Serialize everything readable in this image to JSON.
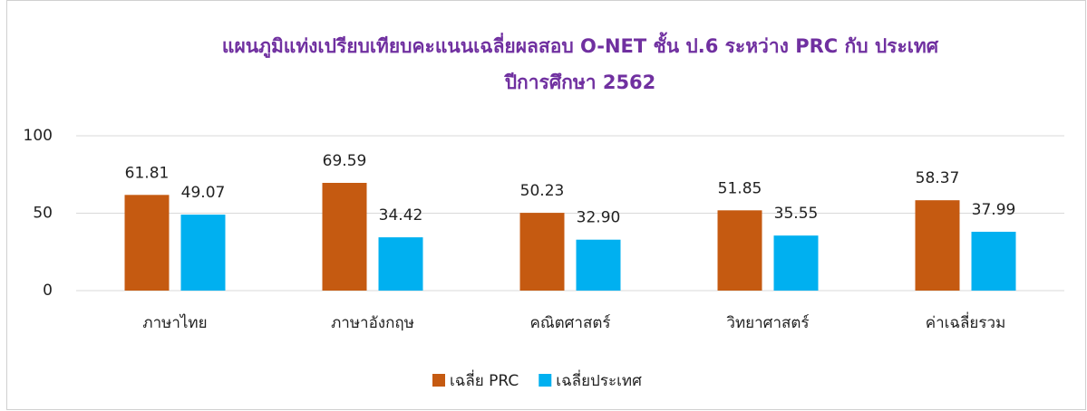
{
  "chart_data": {
    "type": "bar",
    "title": [
      "แผนภูมิแท่งเปรียบเทียบคะแนนเฉลี่ยผลสอบ O-NET ชั้น ป.6 ระหว่าง PRC กับ ประเทศ",
      "ปีการศึกษา 2562"
    ],
    "categories": [
      "ภาษาไทย",
      "ภาษาอังกฤษ",
      "คณิตศาสตร์",
      "วิทยาศาสตร์",
      "ค่าเฉลี่ยรวม"
    ],
    "series": [
      {
        "name": "เฉลี่ย PRC",
        "color": "#c55a11",
        "values": [
          61.81,
          69.59,
          50.23,
          51.85,
          58.37
        ],
        "value_labels": [
          "61.81",
          "69.59",
          "50.23",
          "51.85",
          "58.37"
        ]
      },
      {
        "name": "เฉลี่ยประเทศ",
        "color": "#00b0f0",
        "values": [
          49.07,
          34.42,
          32.9,
          35.55,
          37.99
        ],
        "value_labels": [
          "49.07",
          "34.42",
          "32.90",
          "35.55",
          "37.99"
        ]
      }
    ],
    "ylim": [
      0,
      100
    ],
    "yticks": [
      0,
      50,
      100
    ],
    "grid": true,
    "legend": "bottom"
  }
}
